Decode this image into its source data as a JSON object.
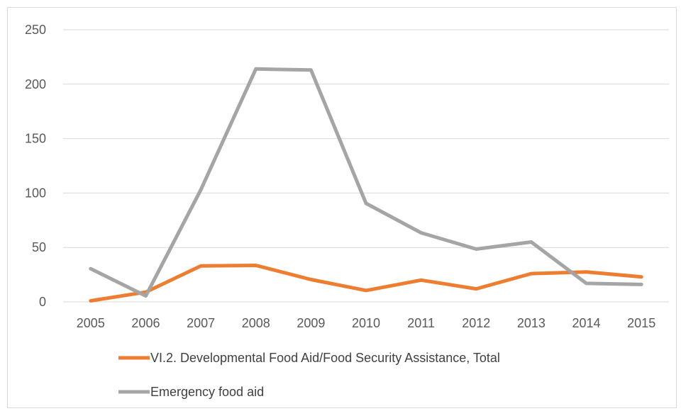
{
  "chart_data": {
    "type": "line",
    "categories": [
      "2005",
      "2006",
      "2007",
      "2008",
      "2009",
      "2010",
      "2011",
      "2012",
      "2013",
      "2014",
      "2015"
    ],
    "series": [
      {
        "name": "VI.2. Developmental Food Aid/Food Security Assistance, Total",
        "color": "#ed7d31",
        "values": [
          1,
          9,
          33,
          33.5,
          20.5,
          10.5,
          20,
          12,
          26,
          27.5,
          23
        ]
      },
      {
        "name": "Emergency food aid",
        "color": "#a5a5a5",
        "values": [
          30.5,
          5.5,
          103,
          214,
          213,
          90.5,
          63.5,
          48.5,
          55,
          17,
          16
        ]
      }
    ],
    "ylim": [
      0,
      250
    ],
    "yticks": [
      "0",
      "50",
      "100",
      "150",
      "200",
      "250"
    ],
    "grid": true,
    "legend_position": "bottom",
    "title": "",
    "xlabel": "",
    "ylabel": ""
  }
}
